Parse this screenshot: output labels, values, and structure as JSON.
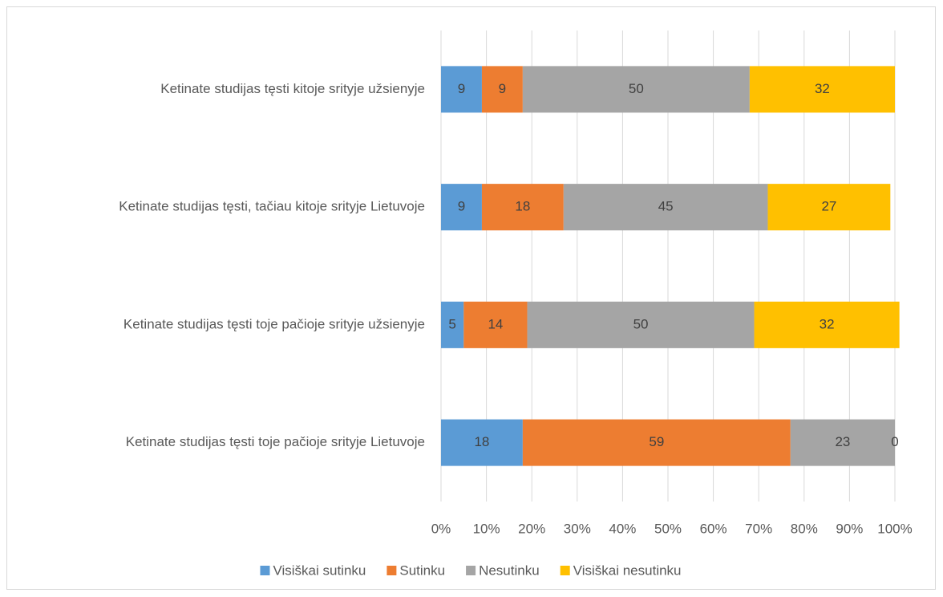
{
  "chart_data": {
    "type": "bar",
    "orientation": "horizontal",
    "stacked": true,
    "categories": [
      "Ketinate studijas tęsti kitoje srityje užsienyje",
      "Ketinate studijas tęsti, tačiau kitoje srityje Lietuvoje",
      "Ketinate studijas tęsti toje pačioje srityje užsienyje",
      "Ketinate studijas tęsti toje pačioje srityje Lietuvoje"
    ],
    "series": [
      {
        "name": "Visiškai sutinku",
        "color": "#5b9bd5",
        "values": [
          9,
          9,
          5,
          18
        ]
      },
      {
        "name": "Sutinku",
        "color": "#ed7d31",
        "values": [
          9,
          18,
          14,
          59
        ]
      },
      {
        "name": "Nesutinku",
        "color": "#a5a5a5",
        "values": [
          50,
          45,
          50,
          23
        ]
      },
      {
        "name": "Visiškai nesutinku",
        "color": "#ffc000",
        "values": [
          32,
          27,
          32,
          0
        ]
      }
    ],
    "xlim": [
      0,
      100
    ],
    "xticks": [
      {
        "value": 0,
        "label": "0%"
      },
      {
        "value": 10,
        "label": "10%"
      },
      {
        "value": 20,
        "label": "20%"
      },
      {
        "value": 30,
        "label": "30%"
      },
      {
        "value": 40,
        "label": "40%"
      },
      {
        "value": 50,
        "label": "50%"
      },
      {
        "value": 60,
        "label": "60%"
      },
      {
        "value": 70,
        "label": "70%"
      },
      {
        "value": 80,
        "label": "80%"
      },
      {
        "value": 90,
        "label": "90%"
      },
      {
        "value": 100,
        "label": "100%"
      }
    ],
    "grid": true,
    "legend": "bottom"
  }
}
